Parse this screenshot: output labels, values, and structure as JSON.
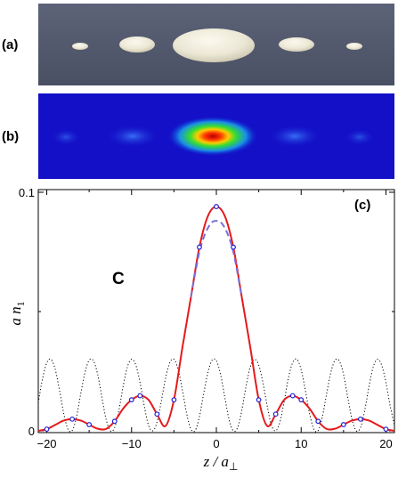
{
  "panels": {
    "a_label": "(a)",
    "b_label": "(b)",
    "c_label": "(c)"
  },
  "chart_data": {
    "type": "line",
    "annotation": "C",
    "xlabel": "z / a⊥",
    "ylabel": "a n1",
    "xlim": [
      -21,
      21
    ],
    "ylim": [
      0,
      0.1
    ],
    "xticks": [
      -20,
      -10,
      0,
      10,
      20
    ],
    "yticks": [
      0,
      0.1
    ],
    "series": [
      {
        "style": "solid",
        "color": "#e41a1c",
        "x": [
          -21,
          -20,
          -19,
          -18,
          -17,
          -16,
          -15,
          -14,
          -13,
          -12,
          -11,
          -10,
          -9,
          -8,
          -7,
          -6,
          -5,
          -4,
          -3,
          -2,
          -1,
          0,
          1,
          2,
          3,
          4,
          5,
          6,
          7,
          8,
          9,
          10,
          11,
          12,
          13,
          14,
          15,
          16,
          17,
          18,
          19,
          20,
          21
        ],
        "y": [
          0,
          0.0007,
          0.0025,
          0.0043,
          0.0049,
          0.0043,
          0.0026,
          0.0009,
          0.0008,
          0.004,
          0.0093,
          0.013,
          0.0147,
          0.013,
          0.007,
          0.002,
          0.013,
          0.035,
          0.056,
          0.077,
          0.09,
          0.094,
          0.09,
          0.077,
          0.056,
          0.035,
          0.013,
          0.002,
          0.007,
          0.013,
          0.0147,
          0.013,
          0.0093,
          0.004,
          0.0008,
          0.0009,
          0.0026,
          0.0043,
          0.0049,
          0.0043,
          0.0025,
          0.0007,
          0
        ]
      },
      {
        "style": "dashed",
        "color": "#7b6fd6",
        "x": [
          -3,
          -2.5,
          -2,
          -1.5,
          -1,
          -0.5,
          0,
          0.5,
          1,
          1.5,
          2,
          2.5,
          3
        ],
        "y": [
          0.056,
          0.066,
          0.075,
          0.081,
          0.085,
          0.0875,
          0.088,
          0.0875,
          0.085,
          0.081,
          0.075,
          0.066,
          0.056
        ]
      },
      {
        "style": "dotted",
        "color": "#000000",
        "x": [
          -21,
          -20.5,
          -20,
          -19.5,
          -19,
          -18.5,
          -18,
          -17.5,
          -17,
          -16.5,
          -16,
          -15.5,
          -15,
          -14.5,
          -14,
          -13.5,
          -13,
          -12.5,
          -12,
          -11.5,
          -11,
          -10.5,
          -10,
          -9.5,
          -9,
          -8.5,
          -8,
          -7.5,
          -7,
          -6.5,
          -6,
          -5.5,
          -5,
          -4.5,
          -4,
          -3.5,
          -3,
          -2.5,
          -2,
          -1.5,
          -1,
          -0.5,
          0,
          0.5,
          1,
          1.5,
          2,
          2.5,
          3,
          3.5,
          4,
          4.5,
          5,
          5.5,
          6,
          6.5,
          7,
          7.5,
          8,
          8.5,
          9,
          9.5,
          10,
          10.5,
          11,
          11.5,
          12,
          12.5,
          13,
          13.5,
          14,
          14.5,
          15,
          15.5,
          16,
          16.5,
          17,
          17.5,
          18,
          18.5,
          19,
          19.5,
          20,
          20.5,
          21
        ],
        "y": [
          0.0118,
          0.0218,
          0.0285,
          0.03,
          0.0257,
          0.0171,
          0.0073,
          0.0007,
          0.0001,
          0.0058,
          0.0154,
          0.0244,
          0.0296,
          0.0294,
          0.0237,
          0.0141,
          0.0048,
          0,
          0.0013,
          0.0085,
          0.0185,
          0.0267,
          0.03,
          0.0276,
          0.0202,
          0.0104,
          0.0023,
          0,
          0.0036,
          0.0122,
          0.022,
          0.0285,
          0.03,
          0.0256,
          0.017,
          0.0072,
          0.0007,
          0.0001,
          0.0059,
          0.0155,
          0.0244,
          0.0296,
          0.0294,
          0.0236,
          0.014,
          0.0047,
          0,
          0.0013,
          0.0086,
          0.0186,
          0.0268,
          0.03,
          0.0275,
          0.0201,
          0.0103,
          0.0023,
          0,
          0.0037,
          0.0124,
          0.0222,
          0.0286,
          0.03,
          0.0256,
          0.0169,
          0.0071,
          0.0006,
          0.0001,
          0.0059,
          0.0155,
          0.0245,
          0.0296,
          0.0293,
          0.0236,
          0.0139,
          0.0047,
          0,
          0.0014,
          0.0086,
          0.0186,
          0.0268,
          0.03,
          0.0275,
          0.0202,
          0.0104,
          0.0024
        ]
      },
      {
        "style": "markers",
        "color": "#1f1fd6",
        "x": [
          -20,
          -17,
          -15,
          -12,
          -10,
          -9,
          -7,
          -5,
          -2,
          0,
          2,
          5,
          7,
          9,
          10,
          12,
          15,
          17,
          20
        ],
        "y": [
          0.0007,
          0.0049,
          0.0026,
          0.004,
          0.013,
          0.0147,
          0.007,
          0.013,
          0.077,
          0.094,
          0.077,
          0.013,
          0.007,
          0.0147,
          0.013,
          0.004,
          0.0026,
          0.0049,
          0.0007
        ]
      }
    ]
  }
}
